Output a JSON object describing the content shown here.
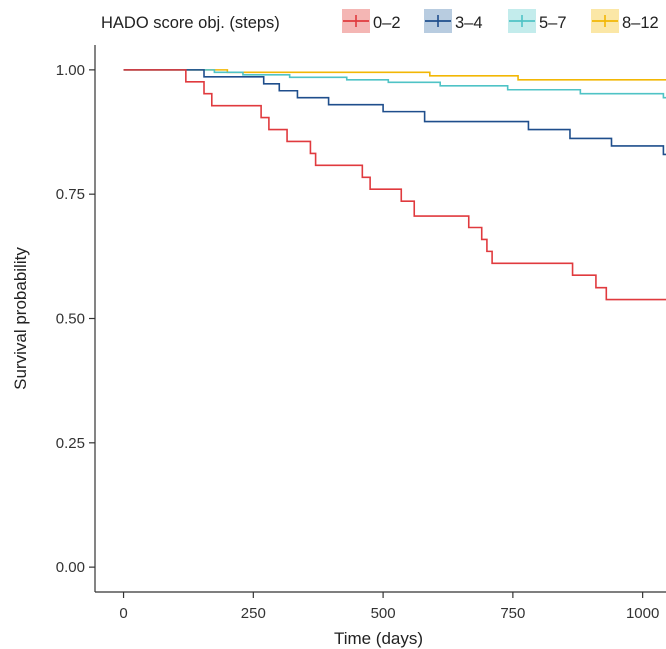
{
  "chart_data": {
    "type": "line",
    "subtype": "kaplan-meier-step",
    "xlabel": "Time (days)",
    "ylabel": "Survival probability",
    "xlim": [
      -55,
      1045
    ],
    "ylim": [
      -0.05,
      1.05
    ],
    "xticks": [
      0,
      250,
      500,
      750,
      1000
    ],
    "yticks": [
      0.0,
      0.25,
      0.5,
      0.75,
      1.0
    ],
    "ytick_labels": [
      "0.00",
      "0.25",
      "0.50",
      "0.75",
      "1.00"
    ],
    "grid": false,
    "legend": {
      "title": "HADO score obj. (steps)",
      "placement": "top"
    },
    "series": [
      {
        "name": "0–2",
        "color": "#e03a3e",
        "legend_fill": "#f4b6b4",
        "steps": [
          [
            0,
            1.0
          ],
          [
            120,
            0.976
          ],
          [
            155,
            0.952
          ],
          [
            170,
            0.928
          ],
          [
            265,
            0.904
          ],
          [
            280,
            0.88
          ],
          [
            315,
            0.856
          ],
          [
            360,
            0.832
          ],
          [
            370,
            0.808
          ],
          [
            460,
            0.784
          ],
          [
            475,
            0.76
          ],
          [
            535,
            0.736
          ],
          [
            560,
            0.706
          ],
          [
            665,
            0.683
          ],
          [
            690,
            0.659
          ],
          [
            700,
            0.635
          ],
          [
            710,
            0.611
          ],
          [
            865,
            0.587
          ],
          [
            910,
            0.562
          ],
          [
            930,
            0.538
          ],
          [
            1045,
            0.538
          ]
        ]
      },
      {
        "name": "3–4",
        "color": "#1f4e8c",
        "legend_fill": "#b8cce0",
        "steps": [
          [
            0,
            1.0
          ],
          [
            155,
            0.986
          ],
          [
            270,
            0.972
          ],
          [
            300,
            0.958
          ],
          [
            335,
            0.944
          ],
          [
            395,
            0.93
          ],
          [
            500,
            0.916
          ],
          [
            580,
            0.896
          ],
          [
            780,
            0.88
          ],
          [
            860,
            0.862
          ],
          [
            940,
            0.847
          ],
          [
            1040,
            0.83
          ],
          [
            1045,
            0.83
          ]
        ]
      },
      {
        "name": "5–7",
        "color": "#4fc3c6",
        "legend_fill": "#c3ecec",
        "steps": [
          [
            0,
            1.0
          ],
          [
            175,
            0.995
          ],
          [
            230,
            0.99
          ],
          [
            320,
            0.985
          ],
          [
            430,
            0.98
          ],
          [
            510,
            0.975
          ],
          [
            610,
            0.968
          ],
          [
            740,
            0.96
          ],
          [
            880,
            0.952
          ],
          [
            1040,
            0.944
          ],
          [
            1045,
            0.944
          ]
        ]
      },
      {
        "name": "8–12",
        "color": "#f2b705",
        "legend_fill": "#fbe7a6",
        "steps": [
          [
            0,
            1.0
          ],
          [
            200,
            0.995
          ],
          [
            590,
            0.988
          ],
          [
            760,
            0.98
          ],
          [
            1045,
            0.98
          ]
        ]
      }
    ]
  }
}
